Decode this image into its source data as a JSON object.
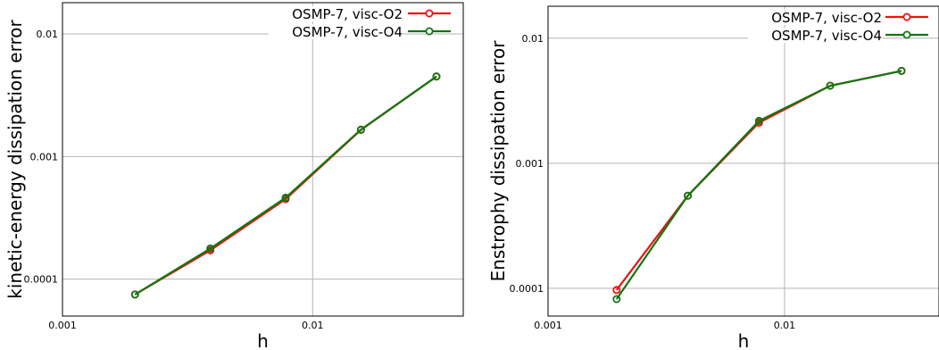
{
  "colors": {
    "red": "#ee1111",
    "green": "#117711",
    "grid": "#b4b4b4"
  },
  "chart_data": [
    {
      "type": "line",
      "xscale": "log",
      "yscale": "log",
      "xlim": [
        0.001,
        0.04
      ],
      "ylim": [
        5e-05,
        0.018
      ],
      "xlabel": "h",
      "ylabel": "kinetic-energy dissipation error",
      "xticks": [
        "0.001",
        "0.01"
      ],
      "yticks": [
        "0.0001",
        "0.001",
        "0.01"
      ],
      "grid": true,
      "legend_position": "top-right",
      "x": [
        0.00195,
        0.0039,
        0.0078,
        0.0156,
        0.03125
      ],
      "series": [
        {
          "name": "OSMP-7, visc-O2",
          "color": "red",
          "values": [
            7.5e-05,
            0.000172,
            0.00045,
            0.00165,
            0.0045
          ]
        },
        {
          "name": "OSMP-7, visc-O4",
          "color": "green",
          "values": [
            7.5e-05,
            0.000178,
            0.000462,
            0.00166,
            0.0045
          ]
        }
      ]
    },
    {
      "type": "line",
      "xscale": "log",
      "yscale": "log",
      "xlim": [
        0.001,
        0.045
      ],
      "ylim": [
        6e-05,
        0.018
      ],
      "xlabel": "h",
      "ylabel": "Enstrophy dissipation error",
      "xticks": [
        "0.001",
        "0.01"
      ],
      "yticks": [
        "0.0001",
        "0.001",
        "0.01"
      ],
      "grid": true,
      "legend_position": "top-right",
      "x": [
        0.00195,
        0.0039,
        0.0078,
        0.0156,
        0.03125
      ],
      "series": [
        {
          "name": "OSMP-7, visc-O2",
          "color": "red",
          "values": [
            9.7e-05,
            0.00055,
            0.00211,
            0.00417,
            0.00548
          ]
        },
        {
          "name": "OSMP-7, visc-O4",
          "color": "green",
          "values": [
            8.2e-05,
            0.00055,
            0.00218,
            0.00417,
            0.00548
          ]
        }
      ]
    }
  ]
}
